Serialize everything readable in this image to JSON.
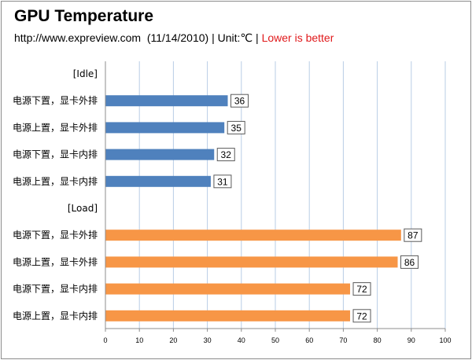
{
  "chart_data": {
    "type": "bar",
    "orientation": "horizontal",
    "title": "GPU Temperature",
    "subtitle": {
      "source": "http://www.expreview.com",
      "date": "(11/14/2010)",
      "sep1": "|",
      "unit": "Unit:℃",
      "sep2": "|",
      "note": "Lower is better"
    },
    "groups": [
      {
        "label": "[Idle]",
        "color": "#4f81bd",
        "categories": [
          "电源下置，显卡外排",
          "电源上置，显卡外排",
          "电源下置，显卡内排",
          "电源上置，显卡内排"
        ],
        "values": [
          36,
          35,
          32,
          31
        ]
      },
      {
        "label": "[Load]",
        "color": "#f79646",
        "categories": [
          "电源下置，显卡外排",
          "电源上置，显卡外排",
          "电源下置，显卡内排",
          "电源上置，显卡内排"
        ],
        "values": [
          87,
          86,
          72,
          72
        ]
      }
    ],
    "xlim": [
      0,
      100
    ],
    "xticks": [
      0,
      10,
      20,
      30,
      40,
      50,
      60,
      70,
      80,
      90,
      100
    ],
    "grid": true,
    "legend": "none"
  },
  "colors": {
    "accent_text": "#e0191b",
    "gridline": "#b9cde5"
  }
}
